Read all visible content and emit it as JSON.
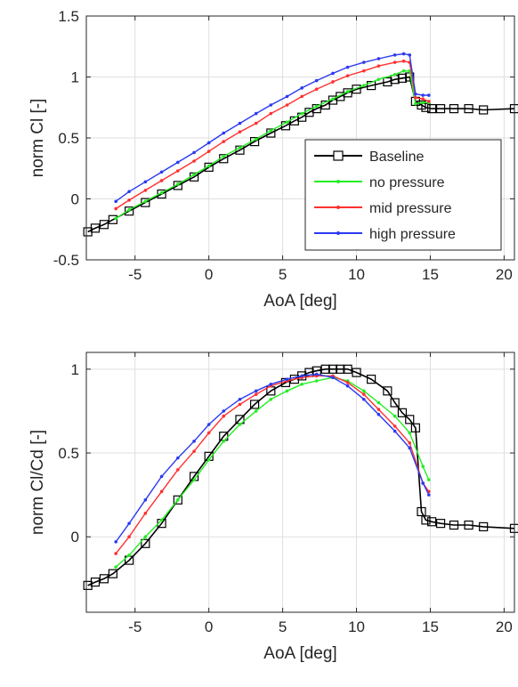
{
  "chart_data": [
    {
      "type": "line",
      "xlabel": "AoA [deg]",
      "ylabel": "norm Cl [-]",
      "xlim": [
        -8.3,
        20.7
      ],
      "ylim": [
        -0.5,
        1.5
      ],
      "xticks": [
        -5,
        0,
        5,
        10,
        15,
        20
      ],
      "yticks": [
        -0.5,
        0,
        0.5,
        1,
        1.5
      ],
      "xtick_labels": [
        "-5",
        "0",
        "5",
        "10",
        "15",
        "20"
      ],
      "ytick_labels": [
        "-0.5",
        "0",
        "0.5",
        "1",
        "1.5"
      ],
      "grid": true,
      "legend": "bottom-right",
      "series": [
        {
          "name": "Baseline",
          "color": "#000000",
          "marker": "square",
          "x": [
            -8.2,
            -7.7,
            -7.1,
            -6.5,
            -5.4,
            -4.3,
            -3.2,
            -2.1,
            -1.0,
            0.0,
            1.0,
            2.1,
            3.1,
            4.2,
            5.2,
            5.8,
            6.3,
            6.8,
            7.3,
            7.9,
            8.4,
            8.9,
            9.4,
            10.0,
            11.0,
            12.1,
            12.6,
            13.1,
            13.6,
            14.0,
            14.4,
            14.7,
            15.1,
            15.7,
            16.6,
            17.6,
            18.6,
            20.7
          ],
          "y": [
            -0.27,
            -0.24,
            -0.21,
            -0.17,
            -0.1,
            -0.03,
            0.04,
            0.11,
            0.18,
            0.26,
            0.33,
            0.4,
            0.47,
            0.54,
            0.6,
            0.64,
            0.67,
            0.71,
            0.74,
            0.77,
            0.81,
            0.84,
            0.87,
            0.9,
            0.93,
            0.96,
            0.98,
            0.99,
            1.0,
            0.8,
            0.77,
            0.75,
            0.74,
            0.74,
            0.74,
            0.74,
            0.73,
            0.74
          ]
        },
        {
          "name": "no pressure",
          "color": "#22ee22",
          "marker": "dot",
          "x": [
            -6.3,
            -5.4,
            -4.3,
            -3.2,
            -2.1,
            -1.0,
            0.0,
            1.0,
            2.1,
            3.2,
            4.2,
            5.3,
            6.3,
            7.3,
            8.4,
            9.4,
            10.5,
            11.5,
            12.6,
            13.2,
            13.6,
            14.0,
            14.5,
            14.9
          ],
          "y": [
            -0.16,
            -0.09,
            -0.02,
            0.05,
            0.12,
            0.2,
            0.27,
            0.35,
            0.42,
            0.49,
            0.56,
            0.63,
            0.7,
            0.76,
            0.82,
            0.88,
            0.93,
            0.98,
            1.02,
            1.05,
            1.05,
            0.78,
            0.79,
            0.79
          ]
        },
        {
          "name": "mid pressure",
          "color": "#ff3030",
          "marker": "dot",
          "x": [
            -6.3,
            -5.4,
            -4.3,
            -3.2,
            -2.1,
            -1.0,
            0.0,
            1.0,
            2.1,
            3.2,
            4.2,
            5.3,
            6.3,
            7.3,
            8.4,
            9.4,
            10.5,
            11.5,
            12.6,
            13.2,
            13.6,
            14.0,
            14.5,
            14.9
          ],
          "y": [
            -0.08,
            -0.01,
            0.07,
            0.15,
            0.23,
            0.31,
            0.39,
            0.47,
            0.55,
            0.62,
            0.7,
            0.77,
            0.84,
            0.9,
            0.96,
            1.01,
            1.05,
            1.09,
            1.12,
            1.13,
            1.12,
            0.83,
            0.82,
            0.8
          ]
        },
        {
          "name": "high pressure",
          "color": "#2b3af0",
          "marker": "dot",
          "x": [
            -6.3,
            -5.4,
            -4.3,
            -3.2,
            -2.1,
            -1.0,
            0.0,
            1.0,
            2.1,
            3.2,
            4.2,
            5.3,
            6.3,
            7.3,
            8.4,
            9.4,
            10.5,
            11.5,
            12.6,
            13.2,
            13.6,
            14.0,
            14.5,
            14.9
          ],
          "y": [
            -0.02,
            0.06,
            0.14,
            0.22,
            0.3,
            0.38,
            0.46,
            0.54,
            0.62,
            0.7,
            0.77,
            0.84,
            0.91,
            0.97,
            1.03,
            1.08,
            1.12,
            1.15,
            1.18,
            1.19,
            1.18,
            0.86,
            0.85,
            0.85
          ]
        }
      ]
    },
    {
      "type": "line",
      "xlabel": "AoA [deg]",
      "ylabel": "norm Cl/Cd [-]",
      "xlim": [
        -8.3,
        20.7
      ],
      "ylim": [
        -0.45,
        1.1
      ],
      "xticks": [
        -5,
        0,
        5,
        10,
        15,
        20
      ],
      "yticks": [
        0,
        0.5,
        1
      ],
      "xtick_labels": [
        "-5",
        "0",
        "5",
        "10",
        "15",
        "20"
      ],
      "ytick_labels": [
        "0",
        "0.5",
        "1"
      ],
      "grid": true,
      "legend": "none",
      "series": [
        {
          "name": "Baseline",
          "color": "#000000",
          "marker": "square",
          "x": [
            -8.2,
            -7.7,
            -7.1,
            -6.5,
            -5.4,
            -4.3,
            -3.2,
            -2.1,
            -1.0,
            0.0,
            1.0,
            2.1,
            3.1,
            4.2,
            5.2,
            5.8,
            6.3,
            6.8,
            7.3,
            7.9,
            8.4,
            8.9,
            9.4,
            10.0,
            11.0,
            12.1,
            12.6,
            13.1,
            13.6,
            14.0,
            14.4,
            14.7,
            15.1,
            15.7,
            16.6,
            17.6,
            18.6,
            20.7
          ],
          "y": [
            -0.29,
            -0.27,
            -0.25,
            -0.22,
            -0.14,
            -0.04,
            0.08,
            0.22,
            0.36,
            0.48,
            0.6,
            0.7,
            0.79,
            0.87,
            0.92,
            0.94,
            0.96,
            0.98,
            0.99,
            1.0,
            1.0,
            1.0,
            1.0,
            0.98,
            0.94,
            0.87,
            0.8,
            0.74,
            0.7,
            0.65,
            0.15,
            0.1,
            0.09,
            0.08,
            0.07,
            0.07,
            0.06,
            0.05
          ]
        },
        {
          "name": "no pressure",
          "color": "#22ee22",
          "marker": "dot",
          "x": [
            -6.3,
            -5.4,
            -4.3,
            -3.2,
            -2.1,
            -1.0,
            0.0,
            1.0,
            2.1,
            3.2,
            4.2,
            5.3,
            6.3,
            7.3,
            8.4,
            9.4,
            10.5,
            11.5,
            12.6,
            13.6,
            14.5,
            14.9
          ],
          "y": [
            -0.18,
            -0.11,
            0.0,
            0.1,
            0.22,
            0.34,
            0.46,
            0.57,
            0.67,
            0.75,
            0.82,
            0.87,
            0.91,
            0.93,
            0.95,
            0.93,
            0.87,
            0.8,
            0.72,
            0.62,
            0.42,
            0.34
          ]
        },
        {
          "name": "mid pressure",
          "color": "#ff3030",
          "marker": "dot",
          "x": [
            -6.3,
            -5.4,
            -4.3,
            -3.2,
            -2.1,
            -1.0,
            0.0,
            1.0,
            2.1,
            3.2,
            4.2,
            5.3,
            6.3,
            7.3,
            8.4,
            9.4,
            10.5,
            11.5,
            12.6,
            13.6,
            14.5,
            14.9
          ],
          "y": [
            -0.1,
            0.0,
            0.14,
            0.27,
            0.4,
            0.51,
            0.62,
            0.72,
            0.79,
            0.85,
            0.9,
            0.93,
            0.95,
            0.96,
            0.96,
            0.92,
            0.85,
            0.76,
            0.66,
            0.56,
            0.32,
            0.27
          ]
        },
        {
          "name": "high pressure",
          "color": "#2b3af0",
          "marker": "dot",
          "x": [
            -6.3,
            -5.4,
            -4.3,
            -3.2,
            -2.1,
            -1.0,
            0.0,
            1.0,
            2.1,
            3.2,
            4.2,
            5.3,
            6.3,
            7.3,
            8.4,
            9.4,
            10.5,
            11.5,
            12.6,
            13.6,
            14.5,
            14.9
          ],
          "y": [
            -0.03,
            0.08,
            0.22,
            0.36,
            0.47,
            0.57,
            0.67,
            0.75,
            0.82,
            0.87,
            0.91,
            0.94,
            0.96,
            0.97,
            0.95,
            0.9,
            0.82,
            0.73,
            0.63,
            0.53,
            0.32,
            0.25
          ]
        }
      ]
    }
  ]
}
